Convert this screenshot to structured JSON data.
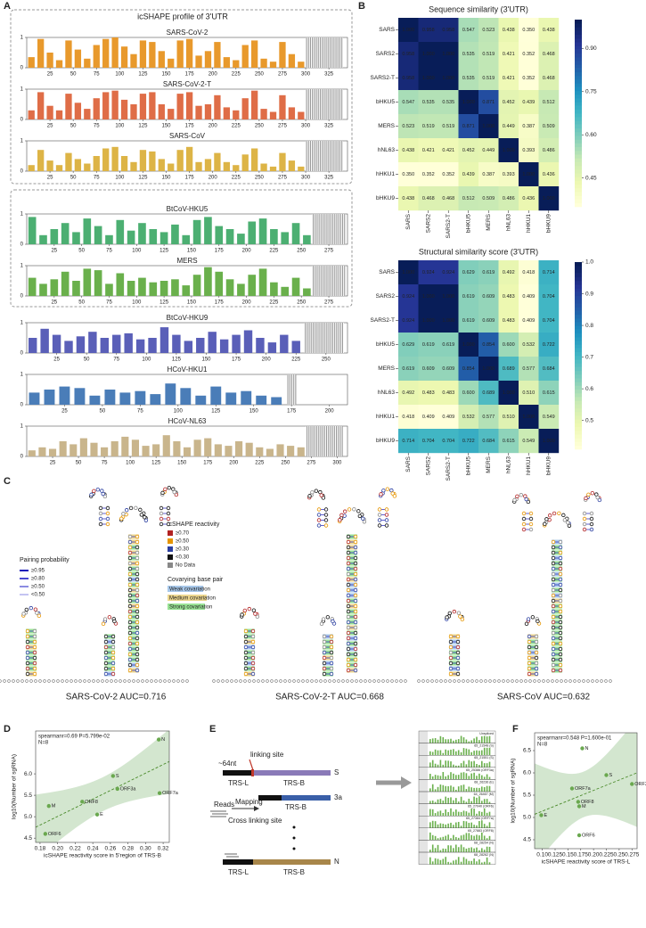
{
  "panel_labels": [
    "A",
    "B",
    "C",
    "D",
    "E",
    "F"
  ],
  "panel_a": {
    "title": "icSHAPE profile of 3'UTR"
  },
  "chart_data": [
    {
      "type": "bar",
      "title": "SARS-CoV-2",
      "color": "#e8992c",
      "xlim": [
        0,
        345
      ],
      "ylim": [
        0,
        1
      ],
      "xticks": [
        25,
        50,
        75,
        100,
        125,
        150,
        175,
        200,
        225,
        250,
        275,
        300,
        325
      ],
      "yticks": [
        0,
        1
      ],
      "no_data": [
        300,
        340
      ],
      "x": [
        5,
        15,
        25,
        35,
        45,
        55,
        65,
        75,
        85,
        95,
        105,
        115,
        125,
        135,
        145,
        155,
        165,
        175,
        185,
        195,
        205,
        215,
        225,
        235,
        245,
        255,
        265,
        275,
        285,
        295
      ],
      "values": [
        0.35,
        0.95,
        0.5,
        0.25,
        0.9,
        0.6,
        0.3,
        0.75,
        0.95,
        1.0,
        0.7,
        0.45,
        0.9,
        0.85,
        0.55,
        0.3,
        0.9,
        0.95,
        0.4,
        0.55,
        0.85,
        0.35,
        0.25,
        0.75,
        0.9,
        0.3,
        0.2,
        0.85,
        0.45,
        0.2
      ]
    },
    {
      "type": "bar",
      "title": "SARS-CoV-2-T",
      "color": "#df6d47",
      "xlim": [
        0,
        345
      ],
      "ylim": [
        0,
        1
      ],
      "xticks": [
        25,
        50,
        75,
        100,
        125,
        150,
        175,
        200,
        225,
        250,
        275,
        300,
        325
      ],
      "yticks": [
        0,
        1
      ],
      "no_data": [
        300,
        340
      ],
      "x": [
        5,
        15,
        25,
        35,
        45,
        55,
        65,
        75,
        85,
        95,
        105,
        115,
        125,
        135,
        145,
        155,
        165,
        175,
        185,
        195,
        205,
        215,
        225,
        235,
        245,
        255,
        265,
        275,
        285,
        295
      ],
      "values": [
        0.3,
        0.9,
        0.45,
        0.3,
        0.85,
        0.55,
        0.35,
        0.7,
        0.9,
        0.95,
        0.65,
        0.5,
        0.85,
        0.9,
        0.5,
        0.35,
        0.85,
        0.9,
        0.45,
        0.5,
        0.8,
        0.4,
        0.3,
        0.7,
        0.95,
        0.35,
        0.25,
        0.8,
        0.4,
        0.25
      ]
    },
    {
      "type": "bar",
      "title": "SARS-CoV",
      "color": "#ddb446",
      "xlim": [
        0,
        345
      ],
      "ylim": [
        0,
        1
      ],
      "xticks": [
        25,
        50,
        75,
        100,
        125,
        150,
        175,
        200,
        225,
        250,
        275,
        300,
        325
      ],
      "yticks": [
        0,
        1
      ],
      "no_data": [
        300,
        340
      ],
      "x": [
        5,
        15,
        25,
        35,
        45,
        55,
        65,
        75,
        85,
        95,
        105,
        115,
        125,
        135,
        145,
        155,
        165,
        175,
        185,
        195,
        205,
        215,
        225,
        235,
        245,
        255,
        265,
        275,
        285,
        295
      ],
      "values": [
        0.2,
        0.7,
        0.35,
        0.2,
        0.6,
        0.4,
        0.25,
        0.5,
        0.75,
        0.8,
        0.5,
        0.3,
        0.7,
        0.65,
        0.4,
        0.25,
        0.7,
        0.8,
        0.3,
        0.4,
        0.6,
        0.3,
        0.2,
        0.55,
        0.75,
        0.25,
        0.15,
        0.6,
        0.35,
        0.15
      ]
    },
    {
      "type": "bar",
      "title": "BtCoV-HKU5",
      "color": "#4caf72",
      "xlim": [
        0,
        292
      ],
      "ylim": [
        0,
        1
      ],
      "xticks": [
        25,
        50,
        75,
        100,
        125,
        150,
        175,
        200,
        225,
        250,
        275
      ],
      "yticks": [
        0,
        1
      ],
      "no_data": [
        260,
        290
      ],
      "x": [
        5,
        15,
        25,
        35,
        45,
        55,
        65,
        75,
        85,
        95,
        105,
        115,
        125,
        135,
        145,
        155,
        165,
        175,
        185,
        195,
        205,
        215,
        225,
        235,
        245,
        255
      ],
      "values": [
        0.9,
        0.3,
        0.5,
        0.7,
        0.4,
        0.85,
        0.6,
        0.3,
        0.8,
        0.45,
        0.7,
        0.5,
        0.4,
        0.65,
        0.3,
        0.8,
        0.9,
        0.6,
        0.5,
        0.35,
        0.75,
        0.85,
        0.5,
        0.4,
        0.7,
        0.3
      ]
    },
    {
      "type": "bar",
      "title": "MERS",
      "color": "#6ab04c",
      "xlim": [
        0,
        292
      ],
      "ylim": [
        0,
        1
      ],
      "xticks": [
        25,
        50,
        75,
        100,
        125,
        150,
        175,
        200,
        225,
        250,
        275
      ],
      "yticks": [
        0,
        1
      ],
      "no_data": [
        260,
        290
      ],
      "x": [
        5,
        15,
        25,
        35,
        45,
        55,
        65,
        75,
        85,
        95,
        105,
        115,
        125,
        135,
        145,
        155,
        165,
        175,
        185,
        195,
        205,
        215,
        225,
        235,
        245,
        255
      ],
      "values": [
        0.6,
        0.4,
        0.55,
        0.8,
        0.5,
        0.9,
        0.85,
        0.4,
        0.75,
        0.5,
        0.6,
        0.45,
        0.5,
        0.55,
        0.35,
        0.7,
        0.95,
        0.8,
        0.55,
        0.4,
        0.7,
        0.9,
        0.45,
        0.3,
        0.6,
        0.25
      ]
    },
    {
      "type": "bar",
      "title": "BtCoV-HKU9",
      "color": "#5a5fb8",
      "xlim": [
        0,
        268
      ],
      "ylim": [
        0,
        1
      ],
      "xticks": [
        25,
        50,
        75,
        100,
        125,
        150,
        175,
        200,
        225,
        250
      ],
      "yticks": [
        0,
        1
      ],
      "no_data": [
        232,
        265
      ],
      "x": [
        5,
        15,
        25,
        35,
        45,
        55,
        65,
        75,
        85,
        95,
        105,
        115,
        125,
        135,
        145,
        155,
        165,
        175,
        185,
        195,
        205,
        215,
        225
      ],
      "values": [
        0.5,
        0.8,
        0.6,
        0.4,
        0.55,
        0.7,
        0.5,
        0.6,
        0.65,
        0.45,
        0.5,
        0.85,
        0.6,
        0.4,
        0.5,
        0.7,
        0.45,
        0.6,
        0.75,
        0.5,
        0.35,
        0.6,
        0.4
      ]
    },
    {
      "type": "bar",
      "title": "HCoV-HKU1",
      "color": "#4a7db8",
      "xlim": [
        0,
        212
      ],
      "ylim": [
        0,
        1
      ],
      "xticks": [
        25,
        50,
        75,
        100,
        125,
        150,
        175,
        200
      ],
      "yticks": [
        0,
        1
      ],
      "no_data": [
        172,
        178
      ],
      "x": [
        5,
        15,
        25,
        35,
        45,
        55,
        65,
        75,
        85,
        95,
        105,
        115,
        125,
        135,
        145,
        155,
        165
      ],
      "values": [
        0.4,
        0.5,
        0.6,
        0.55,
        0.3,
        0.5,
        0.4,
        0.45,
        0.35,
        0.7,
        0.55,
        0.3,
        0.6,
        0.4,
        0.45,
        0.3,
        0.25
      ]
    },
    {
      "type": "bar",
      "title": "HCoV-NL63",
      "color": "#c9b58c",
      "xlim": [
        0,
        310
      ],
      "ylim": [
        0,
        1
      ],
      "xticks": [
        25,
        50,
        75,
        100,
        125,
        150,
        175,
        200,
        225,
        250,
        275,
        300
      ],
      "yticks": [
        0,
        1
      ],
      "no_data": [
        270,
        305
      ],
      "x": [
        5,
        15,
        25,
        35,
        45,
        55,
        65,
        75,
        85,
        95,
        105,
        115,
        125,
        135,
        145,
        155,
        165,
        175,
        185,
        195,
        205,
        215,
        225,
        235,
        245,
        255,
        265
      ],
      "values": [
        0.2,
        0.3,
        0.25,
        0.5,
        0.4,
        0.6,
        0.45,
        0.3,
        0.5,
        0.65,
        0.55,
        0.35,
        0.4,
        0.7,
        0.5,
        0.3,
        0.55,
        0.6,
        0.4,
        0.35,
        0.5,
        0.45,
        0.3,
        0.25,
        0.4,
        0.35,
        0.3
      ]
    },
    {
      "type": "heatmap",
      "title": "Sequence similarity (3'UTR)",
      "categories": [
        "SARS",
        "SARS2",
        "SARS2-T",
        "bHKU5",
        "MERS",
        "hNL63",
        "hHKU1",
        "bHKU9"
      ],
      "values": [
        [
          1.0,
          0.958,
          0.958,
          0.547,
          0.523,
          0.438,
          0.35,
          0.438
        ],
        [
          0.958,
          1.0,
          1.0,
          0.535,
          0.519,
          0.421,
          0.352,
          0.468
        ],
        [
          0.958,
          1.0,
          1.0,
          0.535,
          0.519,
          0.421,
          0.352,
          0.468
        ],
        [
          0.547,
          0.535,
          0.535,
          1.0,
          0.871,
          0.452,
          0.439,
          0.512
        ],
        [
          0.523,
          0.519,
          0.519,
          0.871,
          1.0,
          0.449,
          0.387,
          0.509
        ],
        [
          0.438,
          0.421,
          0.421,
          0.452,
          0.449,
          1.0,
          0.393,
          0.486
        ],
        [
          0.35,
          0.352,
          0.352,
          0.439,
          0.387,
          0.393,
          1.0,
          0.436
        ],
        [
          0.438,
          0.468,
          0.468,
          0.512,
          0.509,
          0.486,
          0.436,
          1.0
        ]
      ],
      "value_labels": [
        [
          "1.000",
          "0.958",
          "0.958",
          "0.547",
          "0.523",
          "0.438",
          "0.350",
          "0.438"
        ],
        [
          "0.958",
          "1.000",
          "1.000",
          "0.535",
          "0.519",
          "0.421",
          "0.352",
          "0.468"
        ],
        [
          "0.958",
          "1.000",
          "1.000",
          "0.535",
          "0.519",
          "0.421",
          "0.352",
          "0.468"
        ],
        [
          "0.547",
          "0.535",
          "0.535",
          "1.000",
          "0.871",
          "0.452",
          "0.439",
          "0.512"
        ],
        [
          "0.523",
          "0.519",
          "0.519",
          "0.871",
          "1.000",
          "0.449",
          "0.387",
          "0.509"
        ],
        [
          "0.438",
          "0.421",
          "0.421",
          "0.452",
          "0.449",
          "1.000",
          "0.393",
          "0.486"
        ],
        [
          "0.350",
          "0.352",
          "0.352",
          "0.439",
          "0.387",
          "0.393",
          "1.000",
          "0.436"
        ],
        [
          "0.438",
          "0.468",
          "0.468",
          "0.512",
          "0.509",
          "0.486",
          "0.436",
          "1.000"
        ]
      ],
      "zlim": [
        0.35,
        1.0
      ],
      "cticks": [
        0.45,
        {
          "value": 0.6,
          "label": "0.60"
        },
        0.75,
        {
          "value": 0.9,
          "label": "0.90"
        }
      ]
    },
    {
      "type": "heatmap",
      "title": "Structural similarity score (3'UTR)",
      "categories": [
        "SARS",
        "SARS2",
        "SARS2-T",
        "bHKU5",
        "MERS",
        "hNL63",
        "hHKU1",
        "bHKU9"
      ],
      "values": [
        [
          1.0,
          0.924,
          0.924,
          0.629,
          0.619,
          0.492,
          0.418,
          0.714
        ],
        [
          0.924,
          1.0,
          1.0,
          0.619,
          0.609,
          0.483,
          0.409,
          0.704
        ],
        [
          0.924,
          1.0,
          1.0,
          0.619,
          0.609,
          0.483,
          0.409,
          0.704
        ],
        [
          0.629,
          0.619,
          0.619,
          1.0,
          0.854,
          0.6,
          0.532,
          0.722
        ],
        [
          0.619,
          0.609,
          0.609,
          0.854,
          1.0,
          0.689,
          0.577,
          0.684
        ],
        [
          0.492,
          0.483,
          0.483,
          0.6,
          0.689,
          1.0,
          0.51,
          0.615
        ],
        [
          0.418,
          0.409,
          0.409,
          0.532,
          0.577,
          0.51,
          1.0,
          0.549
        ],
        [
          0.714,
          0.704,
          0.704,
          0.722,
          0.684,
          0.615,
          0.549,
          1.0
        ]
      ],
      "value_labels": [
        [
          "1.000",
          "0.924",
          "0.924",
          "0.629",
          "0.619",
          "0.492",
          "0.418",
          "0.714"
        ],
        [
          "0.924",
          "1.000",
          "1.000",
          "0.619",
          "0.609",
          "0.483",
          "0.409",
          "0.704"
        ],
        [
          "0.924",
          "1.000",
          "1.000",
          "0.619",
          "0.609",
          "0.483",
          "0.409",
          "0.704"
        ],
        [
          "0.629",
          "0.619",
          "0.619",
          "1.000",
          "0.854",
          "0.600",
          "0.532",
          "0.722"
        ],
        [
          "0.619",
          "0.609",
          "0.609",
          "0.854",
          "1.000",
          "0.689",
          "0.577",
          "0.684"
        ],
        [
          "0.492",
          "0.483",
          "0.483",
          "0.600",
          "0.689",
          "1.000",
          "0.510",
          "0.615"
        ],
        [
          "0.418",
          "0.409",
          "0.409",
          "0.532",
          "0.577",
          "0.510",
          "1.000",
          "0.549"
        ],
        [
          "0.714",
          "0.704",
          "0.704",
          "0.722",
          "0.684",
          "0.615",
          "0.549",
          "1.000"
        ]
      ],
      "zlim": [
        0.409,
        1.0
      ],
      "cticks": [
        0.5,
        0.6,
        0.7,
        0.8,
        0.9,
        {
          "value": 1,
          "label": "1.0"
        }
      ]
    },
    {
      "type": "scatter",
      "annotation": "spearmanr=0.69 P=5.799e-02",
      "n_label": "N=8",
      "xlabel": "icSHAPE reactivity score in 5'region of TRS-B",
      "ylabel": "log10(Number of sgRNA)",
      "color": "#6aa84f",
      "band_color": "#d3e6cf",
      "labels": [
        "N",
        "S",
        "ORF3a",
        "ORF7a",
        "M",
        "ORF8",
        "E",
        "ORF6"
      ],
      "x": [
        0.315,
        0.263,
        0.268,
        0.316,
        0.19,
        0.228,
        0.245,
        0.186
      ],
      "values": [
        6.8,
        5.95,
        5.65,
        5.55,
        5.25,
        5.35,
        5.05,
        4.6
      ],
      "xlim": [
        0.175,
        0.327
      ],
      "ylim": [
        4.4,
        7.0
      ],
      "xticks": [
        0.18,
        {
          "value": 0.2,
          "label": "0.20"
        },
        0.22,
        0.24,
        0.26,
        0.28,
        {
          "value": 0.3,
          "label": "0.30"
        },
        0.32
      ],
      "yticks": [
        4.5,
        {
          "value": 5,
          "label": "5.0"
        },
        5.5,
        {
          "value": 6,
          "label": "6.0"
        }
      ]
    },
    {
      "type": "scatter",
      "annotation": "spearmanr=0.548 P=1.600e-01",
      "n_label": "N=8",
      "xlabel": "icSHAPE reactivity score of TRS-L",
      "ylabel": "log10(Number of sgRNA)",
      "color": "#6aa84f",
      "band_color": "#d3e6cf",
      "labels": [
        "N",
        "S",
        "ORF3a",
        "ORF7a",
        "ORF8",
        "M",
        "E",
        "ORF6"
      ],
      "x": [
        0.178,
        0.225,
        0.275,
        0.158,
        0.17,
        0.172,
        0.098,
        0.172
      ],
      "values": [
        6.55,
        5.95,
        5.75,
        5.65,
        5.35,
        5.25,
        5.05,
        4.6
      ],
      "xlim": [
        0.085,
        0.285
      ],
      "ylim": [
        4.3,
        6.9
      ],
      "xticks": [
        {
          "value": 0.1,
          "label": "0.10"
        },
        0.125,
        0.15,
        0.175,
        {
          "value": 0.2,
          "label": "0.20"
        },
        0.225,
        0.25,
        0.275
      ],
      "yticks": [
        4.5,
        {
          "value": 5,
          "label": "5.0"
        },
        5.5,
        {
          "value": 6,
          "label": "6.0"
        },
        6.5
      ]
    }
  ],
  "panel_c": {
    "reactivity_legend": {
      "title": "icSHAPE reactivity",
      "items": [
        "≥0.70",
        "≥0.50",
        "≥0.30",
        "<0.30",
        "No Data"
      ]
    },
    "pairing_legend": {
      "title": "Pairing probability",
      "items": [
        "≥0.95",
        "≥0.80",
        "≥0.50",
        "<0.50"
      ]
    },
    "covariation_legend": {
      "title": "Covarying base pair",
      "items": [
        "Weak covariation",
        "Medium covariation",
        "Strong covariation"
      ]
    },
    "captions": [
      "SARS-CoV-2 AUC=0.716",
      "SARS-CoV-2-T AUC=0.668",
      "SARS-CoV AUC=0.632"
    ]
  },
  "panel_e": {
    "nt_length": "~64nt",
    "linking_site": "linking site",
    "reads": "Reads",
    "mapping": "Mapping",
    "cross_linking": "Cross linking site",
    "trs_l": "TRS-L",
    "trs_b": "TRS-B",
    "genes": [
      "S",
      "3a",
      "N"
    ],
    "track_labels": [
      "Unspliced",
      "65_21548 (S)",
      "65_21551 (S)",
      "65_25386 (ORF3a)",
      "68_26236 (E)",
      "64_26467 (M)",
      "65_27040 (ORF6)",
      "65_27384 (ORF7a)",
      "65_27883 (ORF8)",
      "68_28254 (N)",
      "68_28262 (N)"
    ]
  }
}
